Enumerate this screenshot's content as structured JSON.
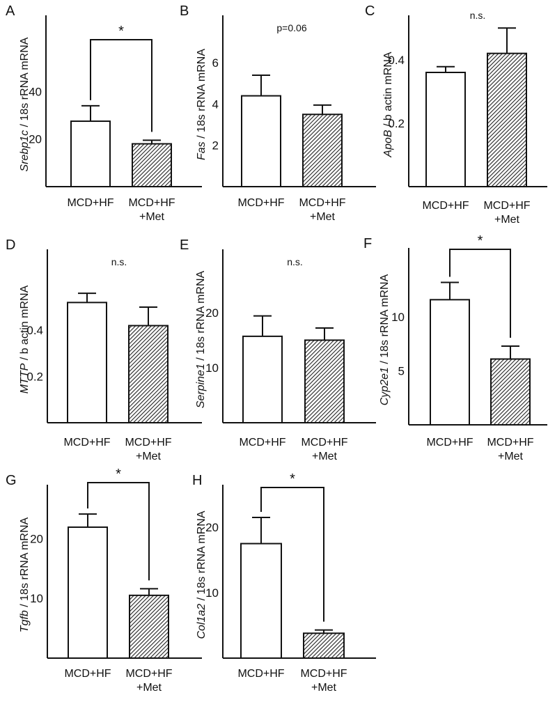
{
  "figure_title": "",
  "chart_data": [
    {
      "panel": "A",
      "type": "bar",
      "ylabel_italic": "Srebp1c",
      "ylabel_rest": " / 18s rRNA mRNA",
      "categories": [
        [
          "MCD+HF"
        ],
        [
          "MCD+HF",
          "+Met"
        ]
      ],
      "values": [
        27.5,
        18.0
      ],
      "errors": [
        6.5,
        1.5
      ],
      "yticks": [
        "20",
        "40"
      ],
      "ytick_values": [
        20,
        40
      ],
      "ylim": [
        0,
        72
      ],
      "significance": "*",
      "bracket": true
    },
    {
      "panel": "B",
      "type": "bar",
      "ylabel_italic": "Fas",
      "ylabel_rest": " / 18s rRNA mRNA",
      "categories": [
        [
          "MCD+HF"
        ],
        [
          "MCD+HF",
          "+Met"
        ]
      ],
      "values": [
        4.4,
        3.5
      ],
      "errors": [
        1.0,
        0.45
      ],
      "yticks": [
        "2",
        "4",
        "6"
      ],
      "ytick_values": [
        2,
        4,
        6
      ],
      "ylim": [
        0,
        8.3
      ],
      "significance": "p=0.06",
      "bracket": false
    },
    {
      "panel": "C",
      "type": "bar",
      "ylabel_italic": "ApoB",
      "ylabel_rest": " / b actin mRNA",
      "categories": [
        [
          "MCD+HF"
        ],
        [
          "MCD+HF",
          "+Met"
        ]
      ],
      "values": [
        0.36,
        0.42
      ],
      "errors": [
        0.018,
        0.08
      ],
      "yticks": [
        "0.2",
        "0.4"
      ],
      "ytick_values": [
        0.2,
        0.4
      ],
      "ylim": [
        0,
        0.54
      ],
      "significance": "n.s.",
      "bracket": false
    },
    {
      "panel": "D",
      "type": "bar",
      "ylabel_italic": "MTTP",
      "ylabel_rest": " / b actin mRNA",
      "categories": [
        [
          "MCD+HF"
        ],
        [
          "MCD+HF",
          "+Met"
        ]
      ],
      "values": [
        0.52,
        0.42
      ],
      "errors": [
        0.04,
        0.08
      ],
      "yticks": [
        "0.2",
        "0.4"
      ],
      "ytick_values": [
        0.2,
        0.4
      ],
      "ylim": [
        0,
        0.75
      ],
      "significance": "n.s.",
      "bracket": false
    },
    {
      "panel": "E",
      "type": "bar",
      "ylabel_italic": "Serpine1",
      "ylabel_rest": " / 18s rRNA mRNA",
      "categories": [
        [
          "MCD+HF"
        ],
        [
          "MCD+HF",
          "+Met"
        ]
      ],
      "values": [
        15.7,
        15.0
      ],
      "errors": [
        3.7,
        2.2
      ],
      "yticks": [
        "10",
        "20"
      ],
      "ytick_values": [
        10,
        20
      ],
      "ylim": [
        0,
        31.5
      ],
      "significance": "n.s.",
      "bracket": false
    },
    {
      "panel": "F",
      "type": "bar",
      "ylabel_italic": "Cyp2e1",
      "ylabel_rest": " / 18s rRNA mRNA",
      "categories": [
        [
          "MCD+HF"
        ],
        [
          "MCD+HF",
          "+Met"
        ]
      ],
      "values": [
        11.6,
        6.1
      ],
      "errors": [
        1.6,
        1.2
      ],
      "yticks": [
        "5",
        "10"
      ],
      "ytick_values": [
        5,
        10
      ],
      "ylim": [
        0,
        16.4
      ],
      "significance": "*",
      "bracket": true
    },
    {
      "panel": "G",
      "type": "bar",
      "ylabel_italic": "Tgfb",
      "ylabel_rest": " / 18s rRNA mRNA",
      "categories": [
        [
          "MCD+HF"
        ],
        [
          "MCD+HF",
          "+Met"
        ]
      ],
      "values": [
        21.9,
        10.5
      ],
      "errors": [
        2.2,
        1.1
      ],
      "yticks": [
        "10",
        "20"
      ],
      "ytick_values": [
        10,
        20
      ],
      "ylim": [
        0,
        29
      ],
      "significance": "*",
      "bracket": true
    },
    {
      "panel": "H",
      "type": "bar",
      "ylabel_italic": "Col1a2",
      "ylabel_rest": " / 18s rRNA mRNA",
      "categories": [
        [
          "MCD+HF"
        ],
        [
          "MCD+HF",
          "+Met"
        ]
      ],
      "values": [
        17.5,
        3.8
      ],
      "errors": [
        4.0,
        0.5
      ],
      "yticks": [
        "10",
        "20"
      ],
      "ytick_values": [
        10,
        20
      ],
      "ylim": [
        0,
        26.5
      ],
      "significance": "*",
      "bracket": true
    }
  ]
}
